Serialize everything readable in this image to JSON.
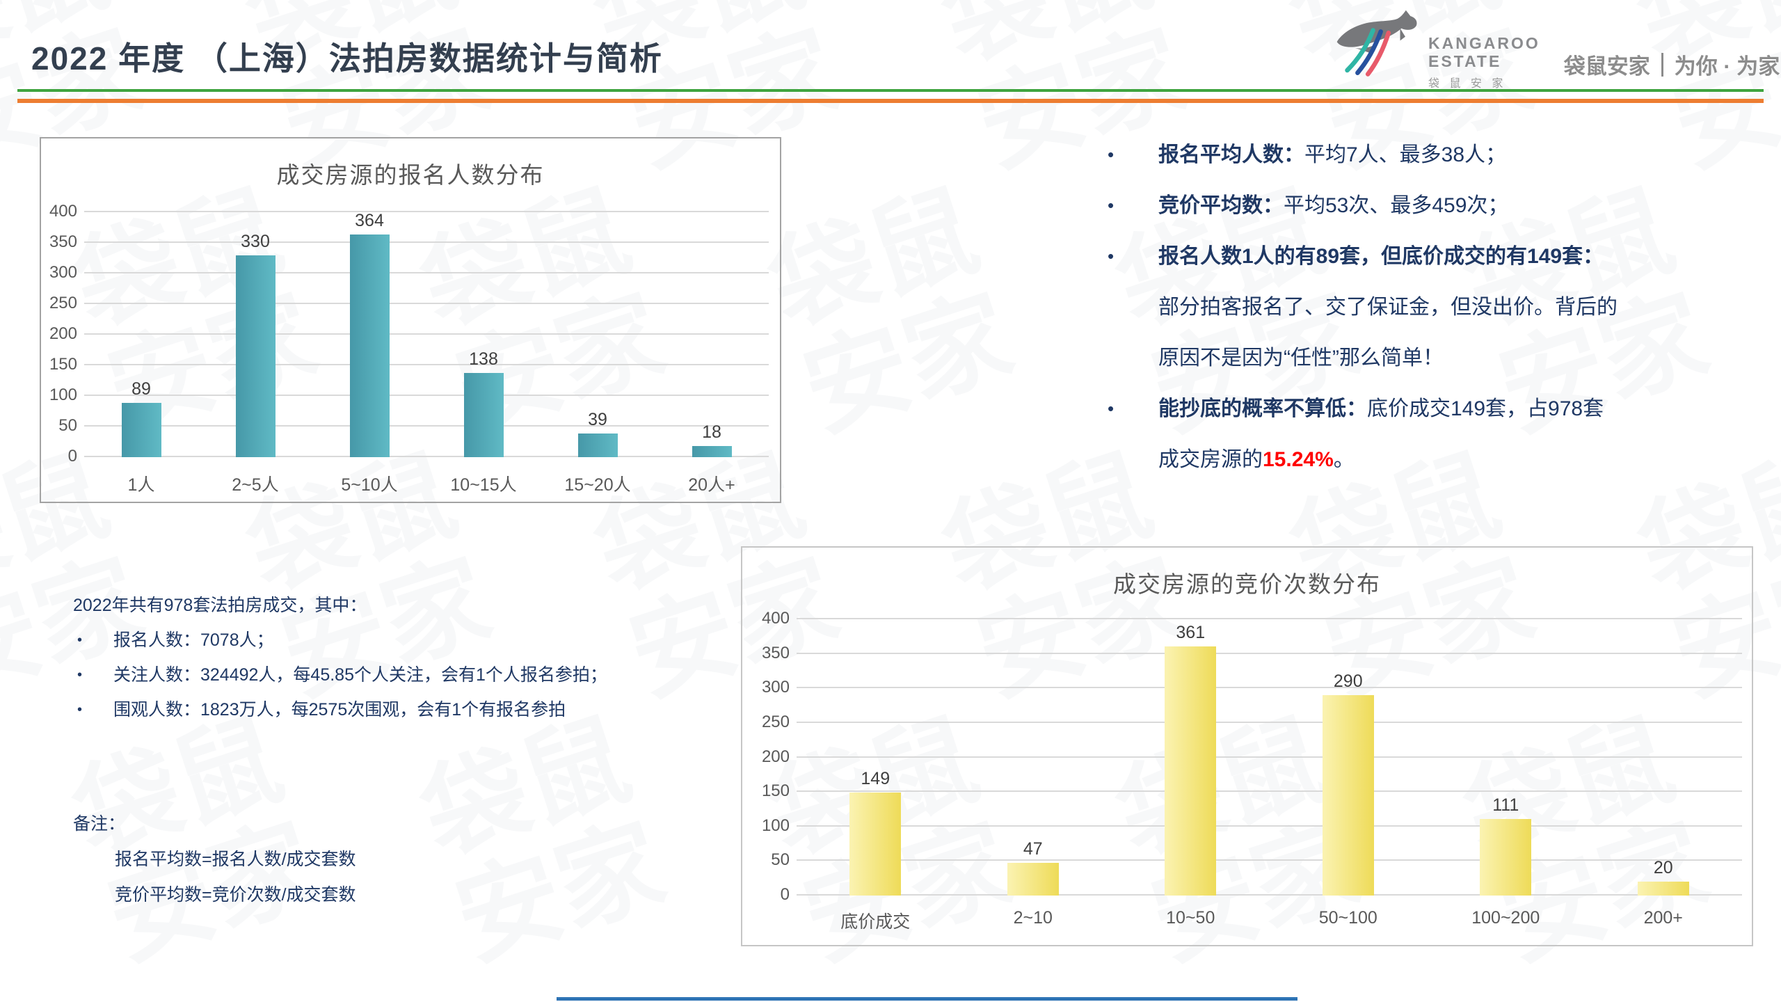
{
  "header": {
    "title": "2022 年度 （上海）法拍房数据统计与简析"
  },
  "theme": {
    "title_color": "#333F4F",
    "rule_green": "#3FA43F",
    "rule_orange": "#ED7D31",
    "body_text_navy": "#1F3864",
    "highlight_red": "#FF0000",
    "teal_bar": "#4FA8B5",
    "yellow_bar": "#F2E07A",
    "chart_text_gray": "#595959",
    "bottom_line_blue": "#2E74B5"
  },
  "logo": {
    "name_en_line1": "KANGAROO",
    "name_en_line2": "ESTATE",
    "name_cn": "袋 鼠 安 家",
    "tagline_brand": "袋鼠安家",
    "tagline_slogan": "为你 · 为家"
  },
  "watermark": {
    "text": "袋鼠安家"
  },
  "chart_data": [
    {
      "type": "bar",
      "title": "成交房源的报名人数分布",
      "categories": [
        "1人",
        "2~5人",
        "5~10人",
        "10~15人",
        "15~20人",
        "20人+"
      ],
      "values": [
        89,
        330,
        364,
        138,
        39,
        18
      ],
      "xlabel": "",
      "ylabel": "",
      "ylim": [
        0,
        400
      ],
      "ytick_step": 50,
      "grid": true,
      "legend": false,
      "bar_color_hint": "teal gradient"
    },
    {
      "type": "bar",
      "title": "成交房源的竞价次数分布",
      "categories": [
        "底价成交",
        "2~10",
        "10~50",
        "50~100",
        "100~200",
        "200+"
      ],
      "values": [
        149,
        47,
        361,
        290,
        111,
        20
      ],
      "xlabel": "",
      "ylabel": "",
      "ylim": [
        0,
        400
      ],
      "ytick_step": 50,
      "grid": true,
      "legend": false,
      "bar_color_hint": "yellow gradient"
    }
  ],
  "right_panel": {
    "items": [
      {
        "bullet": true,
        "segments": [
          {
            "t": "报名平均人数：",
            "b": true
          },
          {
            "t": "平均7人、最多38人；"
          }
        ]
      },
      {
        "bullet": true,
        "segments": [
          {
            "t": "竞价平均数：",
            "b": true
          },
          {
            "t": "平均53次、最多459次；"
          }
        ]
      },
      {
        "bullet": true,
        "segments": [
          {
            "t": "报名人数1人的有89套，但底价成交的有149套：",
            "b": true
          }
        ]
      },
      {
        "bullet": false,
        "segments": [
          {
            "t": "部分拍客报名了、交了保证金，但没出价。背后的"
          }
        ]
      },
      {
        "bullet": false,
        "segments": [
          {
            "t": "原因不是因为“任性”那么简单！"
          }
        ]
      },
      {
        "bullet": true,
        "segments": [
          {
            "t": "能抄底的概率不算低：",
            "b": true
          },
          {
            "t": "底价成交149套，占978套"
          }
        ]
      },
      {
        "bullet": false,
        "segments": [
          {
            "t": "成交房源的"
          },
          {
            "t": "15.24%",
            "b": true,
            "red": true
          },
          {
            "t": "。"
          }
        ]
      }
    ]
  },
  "summary": {
    "intro": "2022年共有978套法拍房成交，其中：",
    "items": [
      "报名人数：7078人；",
      "关注人数：324492人，每45.85个人关注，会有1个人报名参拍；",
      "围观人数：1823万人，每2575次围观，会有1个有报名参拍"
    ]
  },
  "notes": {
    "label": "备注：",
    "lines": [
      "报名平均数=报名人数/成交套数",
      "竞价平均数=竞价次数/成交套数"
    ]
  }
}
